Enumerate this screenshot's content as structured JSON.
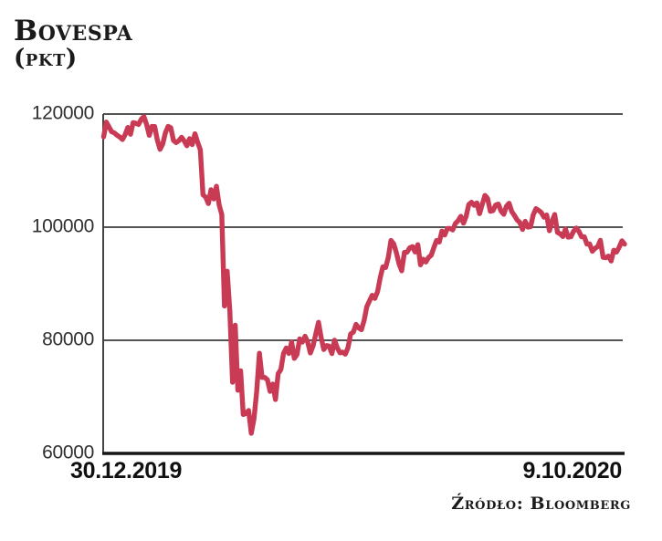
{
  "header": {
    "title": "Bovespa",
    "unit": "(pkt)"
  },
  "footer": {
    "source": "Źródło: Bloomberg"
  },
  "chart_data": {
    "type": "line",
    "title": "Bovespa",
    "ylabel": "pkt",
    "x_start_label": "30.12.2019",
    "x_end_label": "9.10.2020",
    "ylim": [
      60000,
      120000
    ],
    "grid": true,
    "legend": "none",
    "yticks": [
      {
        "value": 120000,
        "label": "120000",
        "gridline": true
      },
      {
        "value": 100000,
        "label": "100000",
        "gridline": true
      },
      {
        "value": 80000,
        "label": "80000",
        "gridline": true
      },
      {
        "value": 60000,
        "label": "60000",
        "gridline": false
      }
    ],
    "colors": {
      "line": "#c93a55",
      "grid": "#3b3b3b",
      "axis": "#151515"
    },
    "series": [
      {
        "name": "Bovespa",
        "values": [
          115964,
          118573,
          117707,
          116878,
          116662,
          116247,
          115947,
          115503,
          116336,
          117632,
          116414,
          118478,
          118376,
          118147,
          119092,
          119528,
          118132,
          116245,
          117806,
          117796,
          115384,
          113761,
          114698,
          116662,
          117829,
          117590,
          115342,
          114951,
          115273,
          115888,
          115263,
          114381,
          115650,
          114603,
          116517,
          115031,
          113681,
          105718,
          105318,
          104172,
          106625,
          104993,
          107224,
          103924,
          102233,
          86067,
          92214,
          85171,
          72583,
          82678,
          71168,
          74618,
          66895,
          67069,
          67577,
          63570,
          66180,
          70966,
          77709,
          73428,
          73429,
          73020,
          70967,
          72253,
          69538,
          74073,
          74845,
          77681,
          78625,
          77682,
          79707,
          76805,
          77475,
          80263,
          79675,
          80702,
          79674,
          77757,
          79028,
          81090,
          83171,
          80506,
          78376,
          79064,
          78965,
          77645,
          80023,
          78695,
          77772,
          77904,
          77551,
          78696,
          81113,
          81445,
          82810,
          82173,
          81863,
          83529,
          85938,
          86949,
          87946,
          87403,
          88620,
          91046,
          93002,
          92854,
          94637,
          97645,
          97068,
          95547,
          93532,
          92284,
          95537,
          95583,
          96341,
          96572,
          95607,
          96905,
          93335,
          94344,
          93834,
          94622,
          95056,
          96419,
          97647,
          97374,
          99312,
          98608,
          99769,
          99775,
          99519,
          100647,
          101147,
          101916,
          100712,
          101919,
          103999,
          104411,
          103862,
          104289,
          102381,
          104020,
          105605,
          105082,
          102801,
          102912,
          103909,
          104081,
          102841,
          102277,
          103688,
          104227,
          102744,
          102064,
          101257,
          100815,
          99595,
          101032,
          100024,
          100101,
          102196,
          103269,
          102968,
          102580,
          101762,
          102143,
          99369,
          101042,
          102243,
          99075,
          98834,
          98333,
          99676,
          98241,
          98300,
          99257,
          99835,
          99257,
          98309,
          98289,
          96999,
          97012,
          95735,
          96262,
          96565,
          97677,
          94666,
          94603,
          94882,
          94015,
          95920,
          95597,
          96456,
          97588,
          96999
        ]
      }
    ]
  }
}
